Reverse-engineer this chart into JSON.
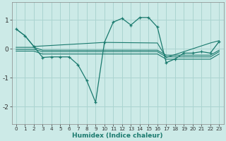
{
  "background_color": "#cceae7",
  "grid_color": "#aad4d0",
  "line_color": "#1a7a6e",
  "xlabel": "Humidex (Indice chaleur)",
  "xlim": [
    -0.5,
    23.5
  ],
  "ylim": [
    -2.6,
    1.6
  ],
  "yticks": [
    -2,
    -1,
    0,
    1
  ],
  "xticks": [
    0,
    1,
    2,
    3,
    4,
    5,
    6,
    7,
    8,
    9,
    10,
    11,
    12,
    13,
    14,
    15,
    16,
    17,
    18,
    19,
    20,
    21,
    22,
    23
  ],
  "figsize": [
    3.2,
    2.0
  ],
  "dpi": 100,
  "series": [
    {
      "x": [
        0,
        1,
        2,
        10,
        16,
        17,
        22,
        23
      ],
      "y": [
        0.68,
        0.45,
        0.08,
        0.22,
        0.2,
        -0.3,
        0.2,
        0.28
      ],
      "marker": false
    },
    {
      "x": [
        0,
        1,
        2,
        3,
        4,
        5,
        9,
        10,
        16,
        17,
        18,
        19,
        20,
        21,
        22,
        23
      ],
      "y": [
        0.05,
        0.05,
        0.05,
        -0.05,
        -0.05,
        -0.05,
        -0.05,
        -0.05,
        -0.05,
        -0.22,
        -0.22,
        -0.22,
        -0.22,
        -0.22,
        -0.22,
        -0.05
      ],
      "marker": false
    },
    {
      "x": [
        0,
        1,
        2,
        3,
        4,
        5,
        9,
        10,
        16,
        17,
        18,
        19,
        20,
        21,
        22,
        23
      ],
      "y": [
        -0.02,
        -0.02,
        -0.02,
        -0.1,
        -0.1,
        -0.1,
        -0.1,
        -0.1,
        -0.1,
        -0.28,
        -0.28,
        -0.28,
        -0.28,
        -0.28,
        -0.28,
        -0.1
      ],
      "marker": false
    },
    {
      "x": [
        0,
        1,
        2,
        3,
        4,
        5,
        9,
        10,
        16,
        17,
        18,
        19,
        20,
        21,
        22,
        23
      ],
      "y": [
        -0.08,
        -0.08,
        -0.08,
        -0.18,
        -0.18,
        -0.18,
        -0.18,
        -0.18,
        -0.18,
        -0.36,
        -0.36,
        -0.36,
        -0.36,
        -0.36,
        -0.36,
        -0.18
      ],
      "marker": false
    },
    {
      "x": [
        0,
        1,
        2,
        3,
        4,
        5,
        6,
        7,
        8,
        9,
        10,
        11,
        12,
        13,
        14,
        15,
        16,
        17,
        18,
        19,
        20,
        21,
        22,
        23
      ],
      "y": [
        0.68,
        0.45,
        0.08,
        -0.3,
        -0.28,
        -0.28,
        -0.28,
        -0.55,
        -1.1,
        -1.85,
        0.22,
        0.92,
        1.05,
        0.82,
        1.08,
        1.08,
        0.75,
        -0.48,
        -0.35,
        -0.15,
        -0.15,
        -0.1,
        -0.15,
        0.25
      ],
      "marker": true
    }
  ]
}
